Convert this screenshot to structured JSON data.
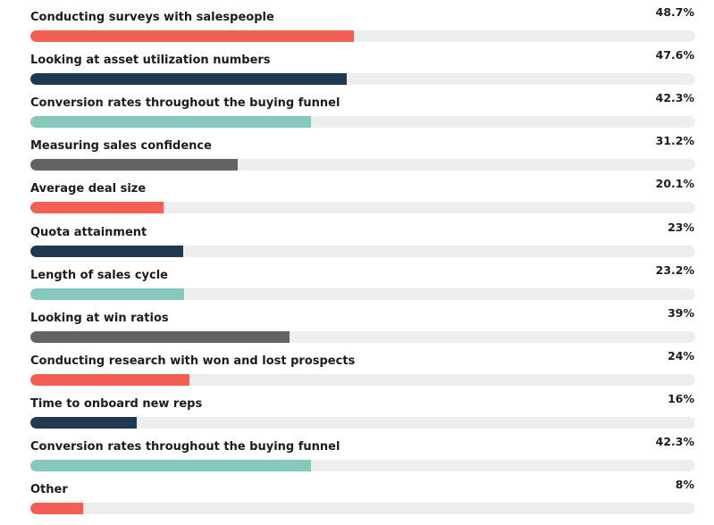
{
  "chart_data": {
    "type": "bar",
    "orientation": "horizontal",
    "title": "",
    "xlabel": "",
    "ylabel": "",
    "xlim": [
      0,
      100
    ],
    "unit": "%",
    "grid": false,
    "legend": "none",
    "colors": {
      "coral": "#f45f53",
      "navy": "#1f3a50",
      "teal": "#84c9bc",
      "gray": "#636363",
      "track": "#eeeeee"
    },
    "categories": [
      "Conducting surveys with salespeople",
      "Looking at asset utilization numbers",
      "Conversion rates throughout the buying funnel",
      "Measuring sales confidence",
      "Average deal size",
      "Quota attainment",
      "Length of sales cycle",
      "Looking at win ratios",
      "Conducting research with won and lost prospects",
      "Time to onboard new reps",
      "Conversion rates throughout the buying funnel",
      "Other"
    ],
    "values": [
      48.7,
      47.6,
      42.3,
      31.2,
      20.1,
      23,
      23.2,
      39,
      24,
      16,
      42.3,
      8
    ],
    "value_labels": [
      "48.7%",
      "47.6%",
      "42.3%",
      "31.2%",
      "20.1%",
      "23%",
      "23.2%",
      "39%",
      "24%",
      "16%",
      "42.3%",
      "8%"
    ],
    "bar_colors": [
      "coral",
      "navy",
      "teal",
      "gray",
      "coral",
      "navy",
      "teal",
      "gray",
      "coral",
      "navy",
      "teal",
      "coral"
    ]
  }
}
